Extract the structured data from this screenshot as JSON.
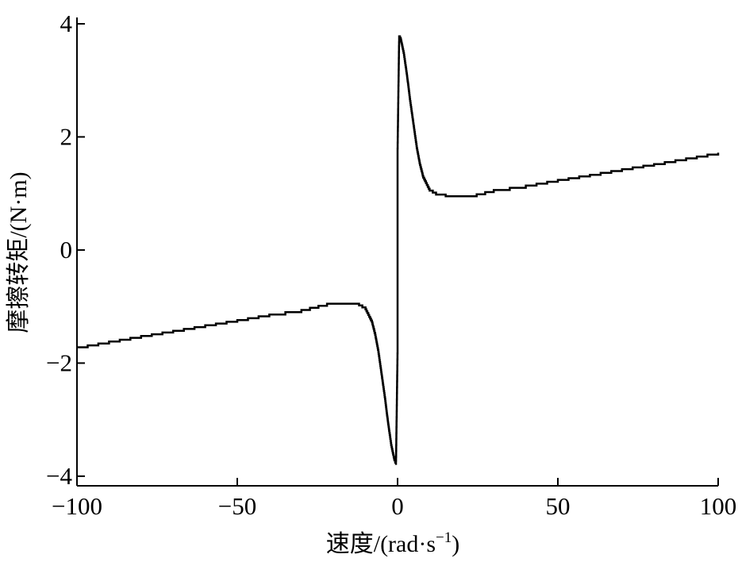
{
  "chart_data": {
    "type": "line",
    "title": "",
    "xlabel": "速度/(rad·s",
    "xlabel_sup": "−1",
    "xlabel_end": ")",
    "ylabel": "摩擦转矩/(N·m)",
    "xlim": [
      -100,
      100
    ],
    "ylim": [
      -4.17,
      4
    ],
    "xticks": [
      -100,
      -50,
      0,
      50,
      100
    ],
    "xtick_labels": [
      "−100",
      "−50",
      "0",
      "50",
      "100"
    ],
    "yticks": [
      -4,
      -2,
      0,
      2,
      4
    ],
    "ytick_labels": [
      "−4",
      "−2",
      "0",
      "2",
      "4"
    ],
    "grid": false,
    "line_color": "#000000",
    "line_style": "stepped",
    "series": [
      {
        "x": [
          -100,
          -90,
          -80,
          -70,
          -60,
          -50,
          -40,
          -30,
          -22,
          -15,
          -12,
          -10,
          -8,
          -7,
          -6,
          -5,
          -4,
          -3,
          -2,
          -1,
          -0.5,
          0,
          0,
          0.5,
          1,
          2,
          3,
          4,
          5,
          6,
          7,
          8,
          10,
          12,
          15,
          22,
          30,
          40,
          50,
          60,
          70,
          80,
          90,
          100
        ],
        "y": [
          -1.72,
          -1.62,
          -1.52,
          -1.43,
          -1.33,
          -1.24,
          -1.14,
          -1.06,
          -0.95,
          -0.95,
          -0.98,
          -1.05,
          -1.28,
          -1.5,
          -1.8,
          -2.2,
          -2.6,
          -3.05,
          -3.45,
          -3.72,
          -3.8,
          -1.76,
          1.76,
          3.78,
          3.72,
          3.45,
          3.05,
          2.6,
          2.2,
          1.8,
          1.5,
          1.28,
          1.05,
          0.98,
          0.95,
          0.95,
          1.06,
          1.14,
          1.24,
          1.33,
          1.43,
          1.52,
          1.62,
          1.72
        ]
      }
    ]
  }
}
